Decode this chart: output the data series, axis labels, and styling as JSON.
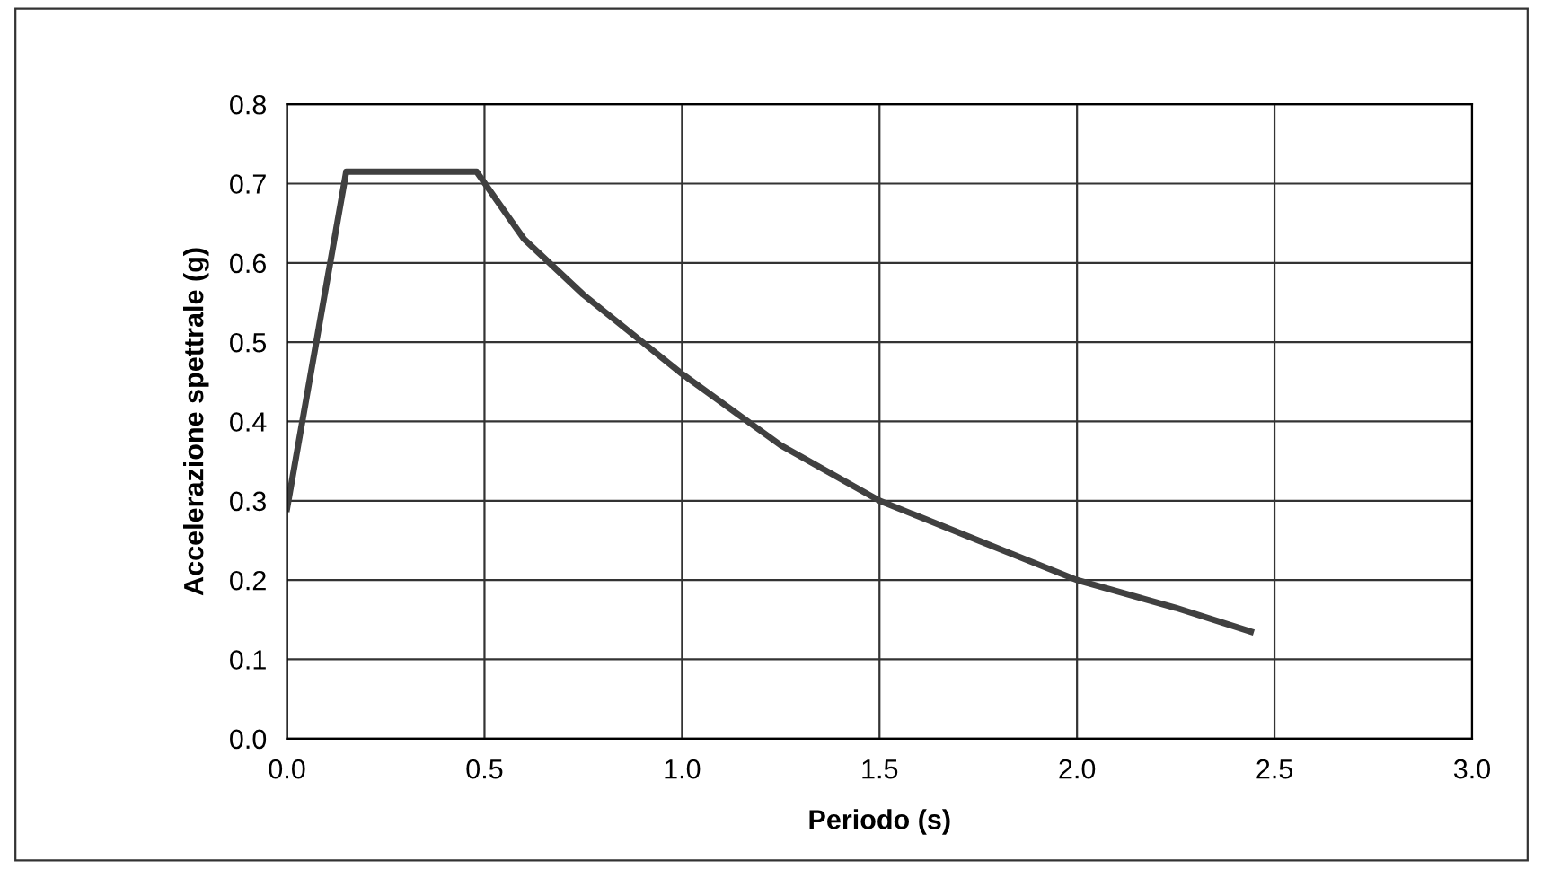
{
  "chart_data": {
    "type": "line",
    "xlabel": "Periodo (s)",
    "ylabel": "Accelerazione spettrale (g)",
    "x": [
      0.0,
      0.15,
      0.48,
      0.6,
      0.75,
      0.9,
      1.0,
      1.25,
      1.5,
      1.75,
      2.0,
      2.25,
      2.44
    ],
    "series": [
      {
        "color": "#404040",
        "values": [
          0.29,
          0.715,
          0.715,
          0.63,
          0.56,
          0.5,
          0.46,
          0.37,
          0.3,
          0.25,
          0.2,
          0.165,
          0.135
        ]
      }
    ],
    "xlim": [
      0.0,
      3.0
    ],
    "xticks": [
      {
        "value": 0,
        "label": "0.0"
      },
      0.5,
      {
        "value": 1,
        "label": "1.0"
      },
      1.5,
      {
        "value": 2,
        "label": "2.0"
      },
      2.5,
      {
        "value": 3,
        "label": "3.0"
      }
    ],
    "ylim": [
      0.0,
      0.8
    ],
    "yticks": [
      {
        "value": 0,
        "label": "0.0"
      },
      0.1,
      0.2,
      0.3,
      0.4,
      0.5,
      0.6,
      0.7,
      0.8
    ],
    "grid": true,
    "marker": "none",
    "line_style": "solid",
    "legend": false
  }
}
